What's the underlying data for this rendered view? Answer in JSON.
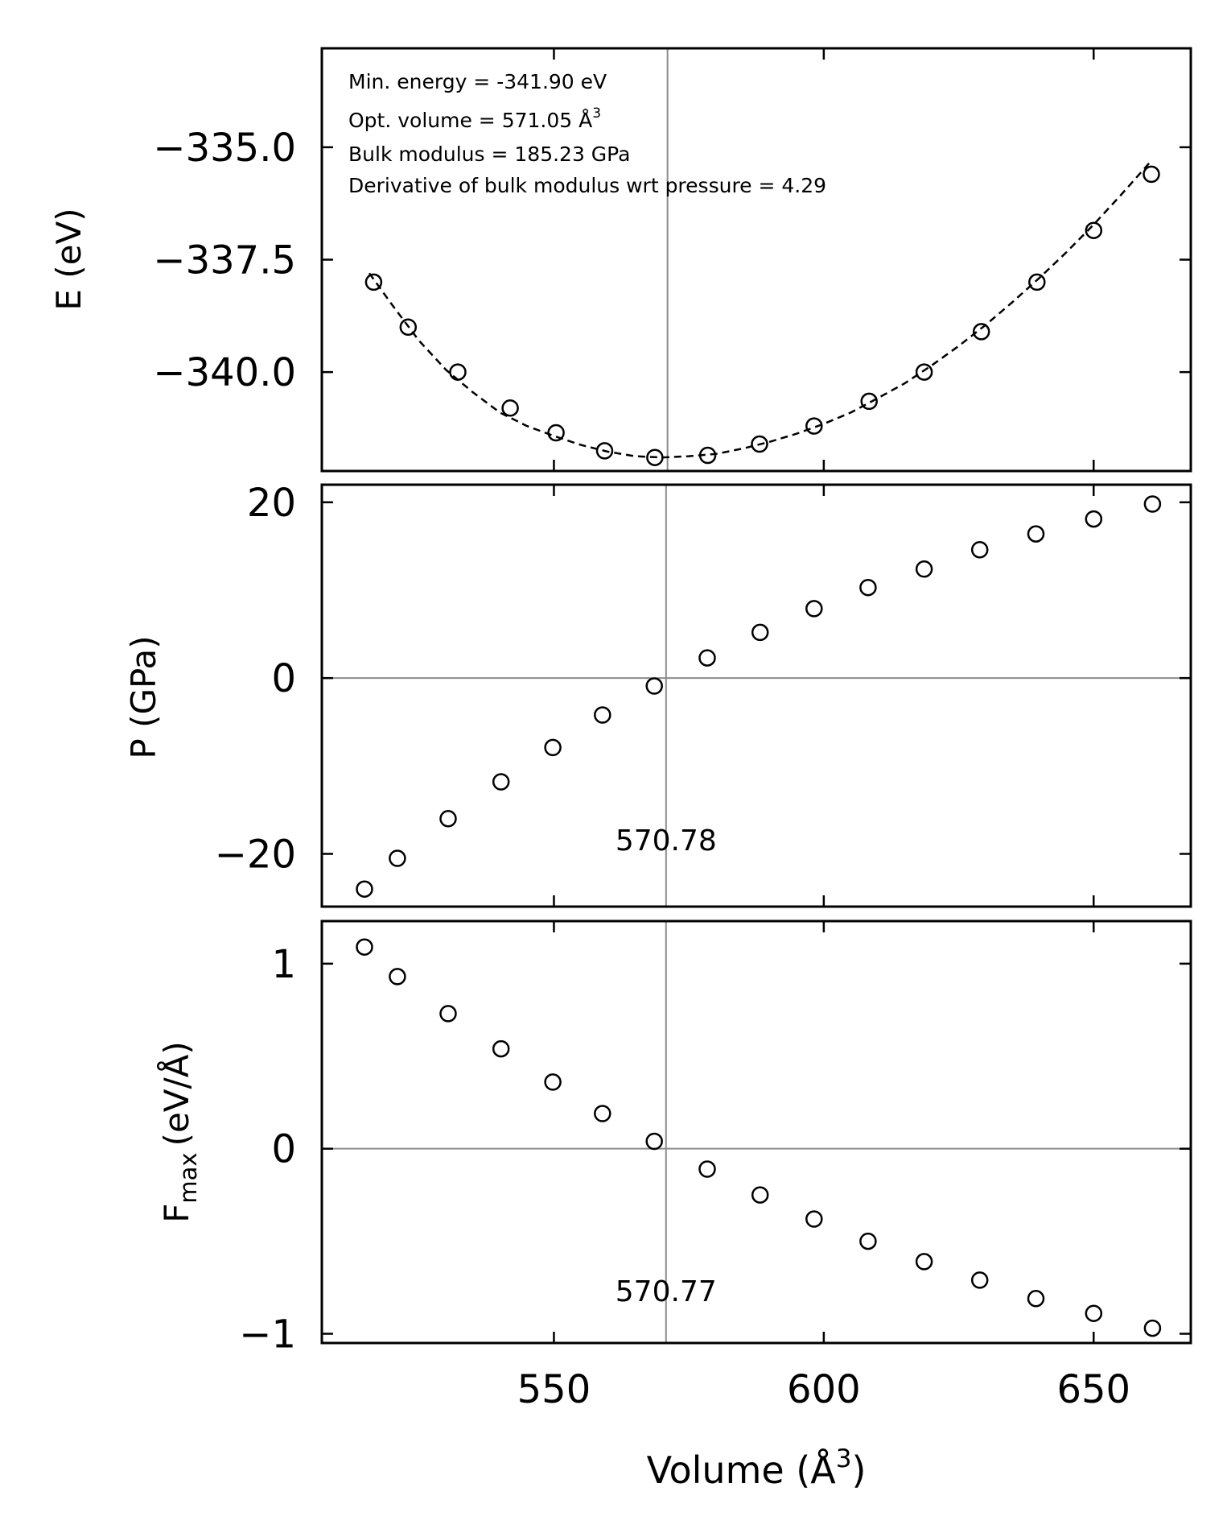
{
  "chart_data": [
    {
      "type": "scatter",
      "panel": "energy",
      "ylabel": "E (eV)",
      "xlim": [
        507,
        668
      ],
      "ylim": [
        -342.2,
        -332.8
      ],
      "yticks": [
        -335.0,
        -337.5,
        -340.0
      ],
      "ytick_labels": [
        "−335.0",
        "−337.5",
        "−340.0"
      ],
      "xticks": [
        550,
        600,
        650
      ],
      "annotations": [
        "Min. energy = -341.90 eV",
        "Opt. volume = 571.05 Å",
        "Bulk modulus = 185.23 GPa",
        "Derivative of bulk modulus wrt pressure = 4.29"
      ],
      "annotation_superscript": "3",
      "vline_x": 571.05,
      "fit_line_style": "dashed",
      "x": [
        516.6,
        523.0,
        532.2,
        541.9,
        550.4,
        559.4,
        568.7,
        578.5,
        588.1,
        598.2,
        608.4,
        618.6,
        629.2,
        639.5,
        650.0,
        660.7
      ],
      "y": [
        -338.0,
        -339.0,
        -340.0,
        -340.8,
        -341.35,
        -341.75,
        -341.9,
        -341.85,
        -341.6,
        -341.2,
        -340.65,
        -340.0,
        -339.1,
        -338.0,
        -336.85,
        -335.6
      ],
      "fit_x": [
        515.8,
        520,
        525,
        530,
        535,
        540,
        545,
        550,
        555,
        560,
        565,
        570,
        575,
        580,
        585,
        590,
        595,
        600,
        605,
        610,
        615,
        620,
        625,
        630,
        635,
        640,
        645,
        650,
        655,
        660.7
      ],
      "fit_y": [
        -337.8,
        -338.5,
        -339.3,
        -339.95,
        -340.45,
        -340.9,
        -341.2,
        -341.42,
        -341.62,
        -341.77,
        -341.87,
        -341.9,
        -341.87,
        -341.82,
        -341.7,
        -341.55,
        -341.37,
        -341.15,
        -340.9,
        -340.58,
        -340.25,
        -339.85,
        -339.42,
        -338.95,
        -338.44,
        -337.9,
        -337.33,
        -336.72,
        -336.07,
        -335.3
      ]
    },
    {
      "type": "scatter",
      "panel": "pressure",
      "ylabel": "P (GPa)",
      "xlim": [
        507,
        668
      ],
      "ylim": [
        -26,
        22
      ],
      "yticks": [
        20,
        0,
        -20
      ],
      "ytick_labels": [
        "20",
        "0",
        "−20"
      ],
      "xticks": [
        550,
        600,
        650
      ],
      "hline_y": 0,
      "vline_x": 570.78,
      "vline_label": "570.78",
      "x": [
        514.9,
        521.0,
        530.4,
        540.2,
        549.8,
        559.0,
        568.6,
        578.4,
        588.2,
        598.2,
        608.2,
        618.6,
        628.9,
        639.3,
        650.0,
        660.9
      ],
      "y": [
        -24.0,
        -20.5,
        -16.0,
        -11.8,
        -7.9,
        -4.2,
        -0.9,
        2.3,
        5.2,
        7.9,
        10.3,
        12.4,
        14.6,
        16.4,
        18.1,
        19.8
      ]
    },
    {
      "type": "scatter",
      "panel": "force",
      "ylabel": "F",
      "ylabel_subscript": "max",
      "ylabel_unit": "(eV/Å)",
      "xlabel": "Volume (Å",
      "xlabel_superscript": "3",
      "xlabel_close": ")",
      "xlim": [
        507,
        668
      ],
      "ylim": [
        -1.05,
        1.23
      ],
      "yticks": [
        1,
        0,
        -1
      ],
      "ytick_labels": [
        "1",
        "0",
        "−1"
      ],
      "xticks": [
        550,
        600,
        650
      ],
      "xtick_labels": [
        "550",
        "600",
        "650"
      ],
      "hline_y": 0,
      "vline_x": 570.77,
      "vline_label": "570.77",
      "x": [
        514.9,
        521.0,
        530.4,
        540.2,
        549.8,
        559.0,
        568.6,
        578.4,
        588.2,
        598.2,
        608.2,
        618.6,
        628.9,
        639.3,
        650.0,
        660.9
      ],
      "y": [
        1.09,
        0.93,
        0.73,
        0.54,
        0.36,
        0.19,
        0.04,
        -0.11,
        -0.25,
        -0.38,
        -0.5,
        -0.61,
        -0.71,
        -0.81,
        -0.89,
        -0.97
      ]
    }
  ]
}
